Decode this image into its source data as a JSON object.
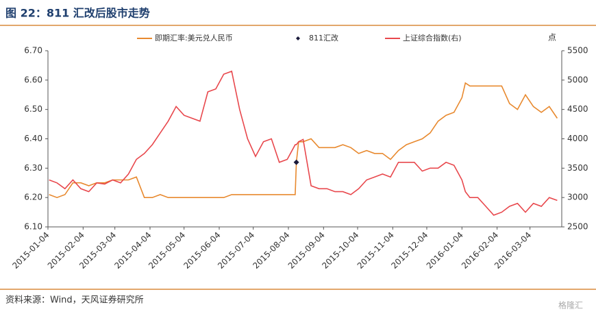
{
  "chart_data": {
    "type": "line",
    "title": "图 22：811 汇改后股市走势",
    "y2_unit": "点",
    "source": "资料来源：Wind，天风证券研究所",
    "watermark": "格隆汇",
    "x": [
      "2015-01-05",
      "2015-01-12",
      "2015-01-19",
      "2015-01-26",
      "2015-02-02",
      "2015-02-09",
      "2015-02-16",
      "2015-02-23",
      "2015-03-02",
      "2015-03-09",
      "2015-03-16",
      "2015-03-23",
      "2015-03-30",
      "2015-04-06",
      "2015-04-13",
      "2015-04-20",
      "2015-04-27",
      "2015-05-04",
      "2015-05-11",
      "2015-05-18",
      "2015-05-25",
      "2015-06-01",
      "2015-06-08",
      "2015-06-15",
      "2015-06-22",
      "2015-06-29",
      "2015-07-06",
      "2015-07-13",
      "2015-07-20",
      "2015-07-27",
      "2015-08-03",
      "2015-08-10",
      "2015-08-11",
      "2015-08-13",
      "2015-08-17",
      "2015-08-24",
      "2015-08-31",
      "2015-09-07",
      "2015-09-14",
      "2015-09-21",
      "2015-09-28",
      "2015-10-05",
      "2015-10-12",
      "2015-10-19",
      "2015-10-26",
      "2015-11-02",
      "2015-11-09",
      "2015-11-16",
      "2015-11-23",
      "2015-11-30",
      "2015-12-07",
      "2015-12-14",
      "2015-12-21",
      "2015-12-28",
      "2016-01-04",
      "2016-01-07",
      "2016-01-11",
      "2016-01-18",
      "2016-01-25",
      "2016-02-01",
      "2016-02-08",
      "2016-02-15",
      "2016-02-22",
      "2016-02-29",
      "2016-03-07",
      "2016-03-14",
      "2016-03-21",
      "2016-03-28"
    ],
    "xlim": [
      "2015-01-04",
      "2016-04-01"
    ],
    "xticks": [
      "2015-01-04",
      "2015-02-04",
      "2015-03-04",
      "2015-04-04",
      "2015-05-04",
      "2015-06-04",
      "2015-07-04",
      "2015-08-04",
      "2015-09-04",
      "2015-10-04",
      "2015-11-04",
      "2015-12-04",
      "2016-01-04",
      "2016-02-04",
      "2016-03-04"
    ],
    "ylim": [
      6.1,
      6.7
    ],
    "yticks": [
      {
        "value": 6.1,
        "label": "6.10"
      },
      {
        "value": 6.2,
        "label": "6.20"
      },
      {
        "value": 6.3,
        "label": "6.30"
      },
      {
        "value": 6.4,
        "label": "6.40"
      },
      {
        "value": 6.5,
        "label": "6.50"
      },
      {
        "value": 6.6,
        "label": "6.60"
      },
      {
        "value": 6.7,
        "label": "6.70"
      }
    ],
    "y2lim": [
      2500,
      5500
    ],
    "y2ticks": [
      2500,
      3000,
      3500,
      4000,
      4500,
      5000,
      5500
    ],
    "series": [
      {
        "name": "即期汇率:美元兑人民币",
        "color": "#e8892e",
        "values": [
          6.21,
          6.2,
          6.21,
          6.25,
          6.25,
          6.24,
          6.25,
          6.25,
          6.26,
          6.26,
          6.26,
          6.27,
          6.2,
          6.2,
          6.21,
          6.2,
          6.2,
          6.2,
          6.2,
          6.2,
          6.2,
          6.2,
          6.2,
          6.21,
          6.21,
          6.21,
          6.21,
          6.21,
          6.21,
          6.21,
          6.21,
          6.21,
          6.32,
          6.39,
          6.39,
          6.4,
          6.37,
          6.37,
          6.37,
          6.38,
          6.37,
          6.35,
          6.36,
          6.35,
          6.35,
          6.33,
          6.36,
          6.38,
          6.39,
          6.4,
          6.42,
          6.46,
          6.48,
          6.49,
          6.54,
          6.59,
          6.58,
          6.58,
          6.58,
          6.58,
          6.58,
          6.52,
          6.5,
          6.55,
          6.51,
          6.49,
          6.51,
          6.47
        ]
      },
      {
        "name": "811汇改",
        "color": "#1a1a3a",
        "marker": "diamond",
        "x": [
          "2015-08-11"
        ],
        "values": [
          6.32
        ]
      },
      {
        "name": "上证综合指数(右)",
        "color": "#e8474c",
        "axis": "y2",
        "values": [
          3300,
          3250,
          3150,
          3300,
          3150,
          3100,
          3250,
          3230,
          3300,
          3250,
          3400,
          3650,
          3750,
          3900,
          4100,
          4300,
          4550,
          4400,
          4350,
          4300,
          4800,
          4850,
          5100,
          5150,
          4500,
          4000,
          3700,
          3950,
          4000,
          3600,
          3650,
          3900,
          3900,
          3950,
          3990,
          3200,
          3150,
          3150,
          3100,
          3100,
          3050,
          3150,
          3300,
          3350,
          3400,
          3350,
          3600,
          3600,
          3600,
          3450,
          3500,
          3500,
          3600,
          3550,
          3300,
          3100,
          3000,
          3000,
          2850,
          2700,
          2750,
          2850,
          2900,
          2750,
          2900,
          2850,
          3000,
          2950
        ]
      }
    ]
  }
}
